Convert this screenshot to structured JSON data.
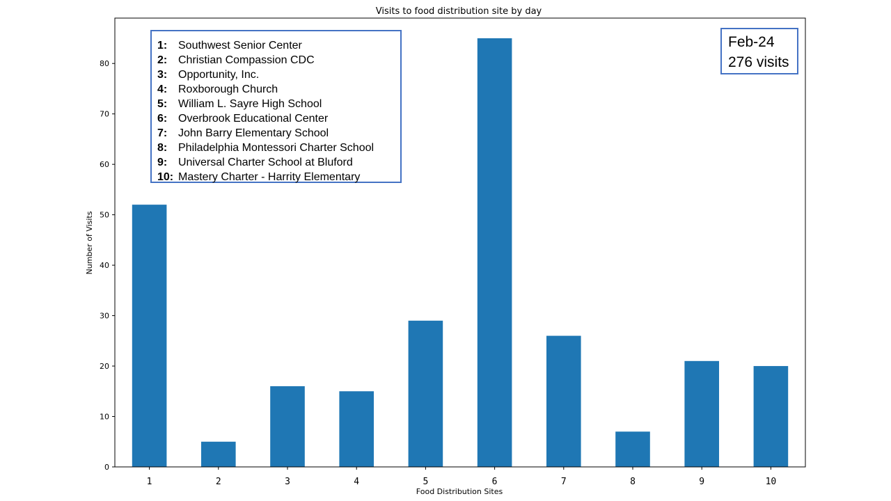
{
  "chart_data": {
    "type": "bar",
    "title": "Visits to food distribution site by day",
    "xlabel": "Food Distribution Sites",
    "ylabel": "Number of Visits",
    "categories": [
      "1",
      "2",
      "3",
      "4",
      "5",
      "6",
      "7",
      "8",
      "9",
      "10"
    ],
    "values": [
      52,
      5,
      16,
      15,
      29,
      85,
      26,
      7,
      21,
      20
    ],
    "ylim": [
      0,
      89
    ],
    "yticks": [
      "0",
      "10",
      "20",
      "30",
      "40",
      "50",
      "60",
      "70",
      "80"
    ],
    "grid": false,
    "bar_color": "#1f77b4"
  },
  "legend": {
    "items": [
      {
        "num": "1:",
        "name": "Southwest Senior Center"
      },
      {
        "num": "2:",
        "name": "Christian Compassion CDC"
      },
      {
        "num": "3:",
        "name": "Opportunity, Inc."
      },
      {
        "num": "4:",
        "name": "Roxborough Church"
      },
      {
        "num": "5:",
        "name": "William L. Sayre High School"
      },
      {
        "num": "6:",
        "name": "Overbrook Educational Center"
      },
      {
        "num": "7:",
        "name": "John Barry Elementary School"
      },
      {
        "num": "8:",
        "name": "Philadelphia Montessori Charter School"
      },
      {
        "num": "9:",
        "name": "Universal Charter School at Bluford"
      },
      {
        "num": "10:",
        "name": "Mastery Charter - Harrity Elementary"
      }
    ],
    "border_color": "#4472c4"
  },
  "summary": {
    "month": "Feb-24",
    "visits": "276 visits"
  }
}
